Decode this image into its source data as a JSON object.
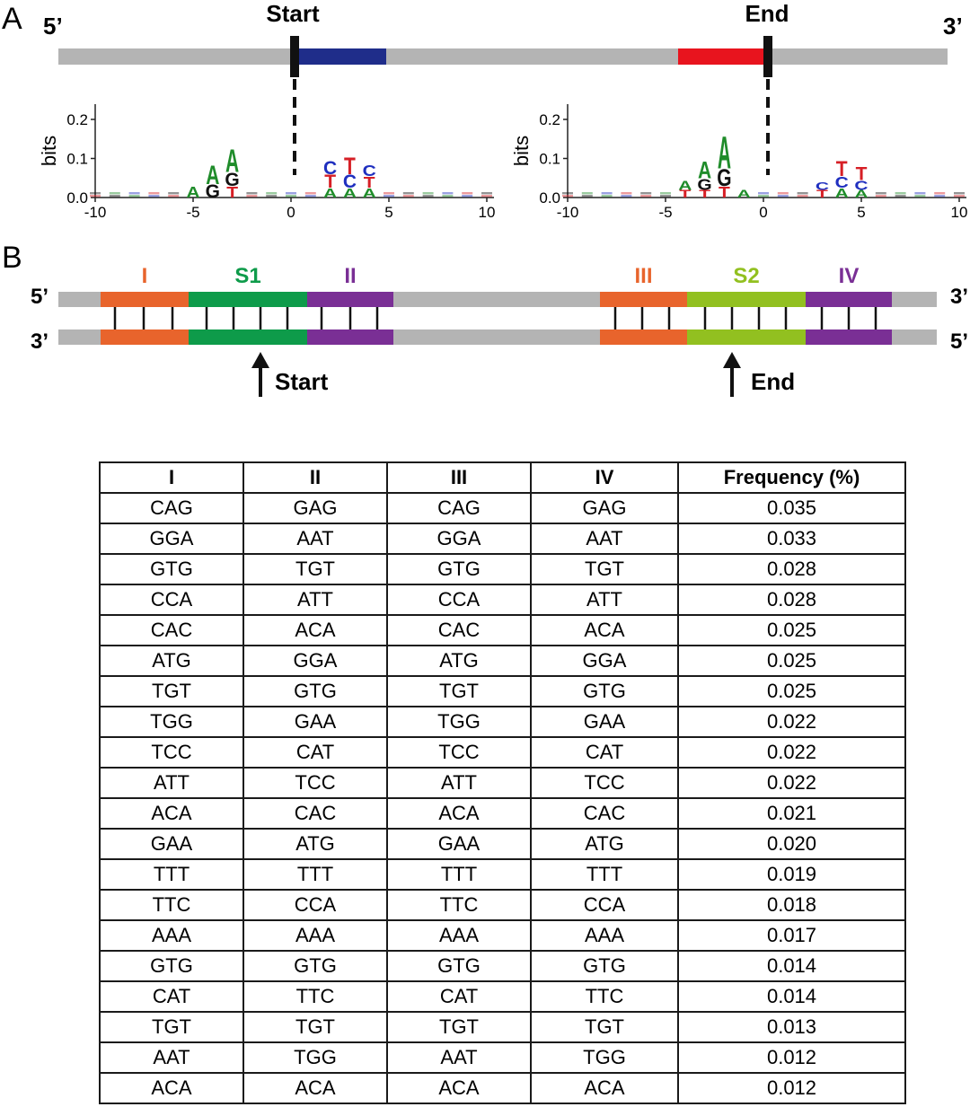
{
  "panel_a": {
    "label": "A",
    "five_prime": "5’",
    "three_prime": "3’",
    "start_label": "Start",
    "end_label": "End",
    "logos": [
      {
        "ylabel": "bits",
        "y_ticks": [
          "0.0",
          "0.1",
          "0.2"
        ],
        "x_ticks": [
          "-10",
          "-5",
          "0",
          "5",
          "10"
        ],
        "featured_letters": [
          {
            "pos": -5,
            "letter": "A",
            "color": "#1f8c2a",
            "height": 0.03
          },
          {
            "pos": -4,
            "letter": "A",
            "color": "#1f8c2a",
            "height": 0.05
          },
          {
            "pos": -4,
            "letter": "G",
            "color": "#111111",
            "height": 0.035
          },
          {
            "pos": -3,
            "letter": "A",
            "color": "#1f8c2a",
            "height": 0.06
          },
          {
            "pos": -3,
            "letter": "G",
            "color": "#111111",
            "height": 0.035
          },
          {
            "pos": -3,
            "letter": "T",
            "color": "#d61f26",
            "height": 0.03
          },
          {
            "pos": 2,
            "letter": "T",
            "color": "#d61f26",
            "height": 0.035
          },
          {
            "pos": 2,
            "letter": "C",
            "color": "#1f2fbf",
            "height": 0.035
          },
          {
            "pos": 2,
            "letter": "A",
            "color": "#1f8c2a",
            "height": 0.025
          },
          {
            "pos": 3,
            "letter": "T",
            "color": "#d61f26",
            "height": 0.045
          },
          {
            "pos": 3,
            "letter": "C",
            "color": "#1f2fbf",
            "height": 0.035
          },
          {
            "pos": 3,
            "letter": "A",
            "color": "#1f8c2a",
            "height": 0.025
          },
          {
            "pos": 4,
            "letter": "T",
            "color": "#d61f26",
            "height": 0.03
          },
          {
            "pos": 4,
            "letter": "C",
            "color": "#1f2fbf",
            "height": 0.03
          },
          {
            "pos": 4,
            "letter": "A",
            "color": "#1f8c2a",
            "height": 0.025
          }
        ]
      },
      {
        "ylabel": "bits",
        "y_ticks": [
          "0.0",
          "0.1",
          "0.2"
        ],
        "x_ticks": [
          "-10",
          "-5",
          "0",
          "5",
          "10"
        ],
        "featured_letters": [
          {
            "pos": -4,
            "letter": "A",
            "color": "#1f8c2a",
            "height": 0.025
          },
          {
            "pos": -4,
            "letter": "T",
            "color": "#d61f26",
            "height": 0.02
          },
          {
            "pos": -3,
            "letter": "A",
            "color": "#1f8c2a",
            "height": 0.045
          },
          {
            "pos": -3,
            "letter": "G",
            "color": "#111111",
            "height": 0.03
          },
          {
            "pos": -3,
            "letter": "T",
            "color": "#d61f26",
            "height": 0.02
          },
          {
            "pos": -2,
            "letter": "A",
            "color": "#1f8c2a",
            "height": 0.085
          },
          {
            "pos": -2,
            "letter": "G",
            "color": "#111111",
            "height": 0.045
          },
          {
            "pos": -2,
            "letter": "T",
            "color": "#d61f26",
            "height": 0.03
          },
          {
            "pos": -1,
            "letter": "A",
            "color": "#1f8c2a",
            "height": 0.02
          },
          {
            "pos": 3,
            "letter": "T",
            "color": "#d61f26",
            "height": 0.02
          },
          {
            "pos": 3,
            "letter": "C",
            "color": "#1f2fbf",
            "height": 0.02
          },
          {
            "pos": 4,
            "letter": "T",
            "color": "#d61f26",
            "height": 0.04
          },
          {
            "pos": 4,
            "letter": "C",
            "color": "#1f2fbf",
            "height": 0.03
          },
          {
            "pos": 4,
            "letter": "A",
            "color": "#1f8c2a",
            "height": 0.025
          },
          {
            "pos": 5,
            "letter": "T",
            "color": "#d61f26",
            "height": 0.035
          },
          {
            "pos": 5,
            "letter": "C",
            "color": "#1f2fbf",
            "height": 0.025
          },
          {
            "pos": 5,
            "letter": "A",
            "color": "#1f8c2a",
            "height": 0.02
          }
        ]
      }
    ]
  },
  "panel_b": {
    "label": "B",
    "top_left": "5’",
    "top_right": "3’",
    "bottom_left": "3’",
    "bottom_right": "5’",
    "segments": [
      {
        "label": "I",
        "color": "#e8642c"
      },
      {
        "label": "S1",
        "color": "#0e9b4a"
      },
      {
        "label": "II",
        "color": "#7a2f95"
      },
      {
        "label": "III",
        "color": "#e8642c"
      },
      {
        "label": "S2",
        "color": "#92c020"
      },
      {
        "label": "IV",
        "color": "#7a2f95"
      }
    ],
    "start_label": "Start",
    "end_label": "End"
  },
  "colors": {
    "strand": "#b4b4b4",
    "start_block": "#1f2d8a",
    "end_block": "#e8141e"
  },
  "table": {
    "headers": [
      "I",
      "II",
      "III",
      "IV",
      "Frequency (%)"
    ],
    "rows": [
      [
        "CAG",
        "GAG",
        "CAG",
        "GAG",
        "0.035"
      ],
      [
        "GGA",
        "AAT",
        "GGA",
        "AAT",
        "0.033"
      ],
      [
        "GTG",
        "TGT",
        "GTG",
        "TGT",
        "0.028"
      ],
      [
        "CCA",
        "ATT",
        "CCA",
        "ATT",
        "0.028"
      ],
      [
        "CAC",
        "ACA",
        "CAC",
        "ACA",
        "0.025"
      ],
      [
        "ATG",
        "GGA",
        "ATG",
        "GGA",
        "0.025"
      ],
      [
        "TGT",
        "GTG",
        "TGT",
        "GTG",
        "0.025"
      ],
      [
        "TGG",
        "GAA",
        "TGG",
        "GAA",
        "0.022"
      ],
      [
        "TCC",
        "CAT",
        "TCC",
        "CAT",
        "0.022"
      ],
      [
        "ATT",
        "TCC",
        "ATT",
        "TCC",
        "0.022"
      ],
      [
        "ACA",
        "CAC",
        "ACA",
        "CAC",
        "0.021"
      ],
      [
        "GAA",
        "ATG",
        "GAA",
        "ATG",
        "0.020"
      ],
      [
        "TTT",
        "TTT",
        "TTT",
        "TTT",
        "0.019"
      ],
      [
        "TTC",
        "CCA",
        "TTC",
        "CCA",
        "0.018"
      ],
      [
        "AAA",
        "AAA",
        "AAA",
        "AAA",
        "0.017"
      ],
      [
        "GTG",
        "GTG",
        "GTG",
        "GTG",
        "0.014"
      ],
      [
        "CAT",
        "TTC",
        "CAT",
        "TTC",
        "0.014"
      ],
      [
        "TGT",
        "TGT",
        "TGT",
        "TGT",
        "0.013"
      ],
      [
        "AAT",
        "TGG",
        "AAT",
        "TGG",
        "0.012"
      ],
      [
        "ACA",
        "ACA",
        "ACA",
        "ACA",
        "0.012"
      ]
    ]
  }
}
